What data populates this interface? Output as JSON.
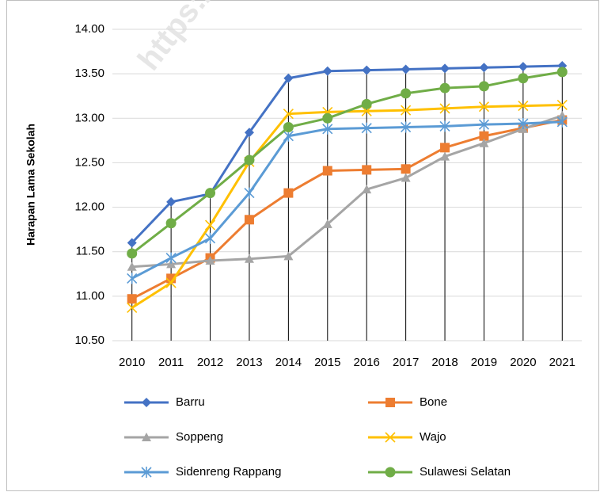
{
  "chart_data": {
    "type": "line",
    "watermark": "https://soppe",
    "ylabel": "Harapan Lama Sekolah",
    "categories": [
      "2010",
      "2011",
      "2012",
      "2013",
      "2014",
      "2015",
      "2016",
      "2017",
      "2018",
      "2019",
      "2020",
      "2021"
    ],
    "series": [
      {
        "name": "Barru",
        "color": "#4472c4",
        "marker": "diamond",
        "values": [
          11.6,
          12.06,
          12.15,
          12.84,
          13.45,
          13.53,
          13.54,
          13.55,
          13.56,
          13.57,
          13.58,
          13.59
        ]
      },
      {
        "name": "Bone",
        "color": "#ed7d31",
        "marker": "square",
        "values": [
          10.97,
          11.2,
          11.43,
          11.86,
          12.16,
          12.41,
          12.42,
          12.43,
          12.67,
          12.8,
          12.89,
          12.98
        ]
      },
      {
        "name": "Soppeng",
        "color": "#a5a5a5",
        "marker": "triangle",
        "values": [
          11.33,
          11.36,
          11.4,
          11.42,
          11.45,
          11.81,
          12.2,
          12.33,
          12.57,
          12.72,
          12.88,
          13.03
        ]
      },
      {
        "name": "Wajo",
        "color": "#ffc000",
        "marker": "x",
        "values": [
          10.87,
          11.15,
          11.8,
          12.51,
          13.05,
          13.07,
          13.08,
          13.09,
          13.11,
          13.13,
          13.14,
          13.15
        ]
      },
      {
        "name": "Sidenreng Rappang",
        "color": "#5b9bd5",
        "marker": "star",
        "values": [
          11.2,
          11.43,
          11.65,
          12.16,
          12.8,
          12.88,
          12.89,
          12.9,
          12.91,
          12.93,
          12.94,
          12.96
        ]
      },
      {
        "name": "Sulawesi Selatan",
        "color": "#70ad47",
        "marker": "circle",
        "values": [
          11.48,
          11.82,
          12.16,
          12.53,
          12.9,
          13.0,
          13.16,
          13.28,
          13.34,
          13.36,
          13.45,
          13.52
        ]
      }
    ],
    "ylim": [
      10.5,
      14
    ],
    "yticks": [
      {
        "value": 10.5,
        "label": "10.50"
      },
      {
        "value": 11,
        "label": "11.00"
      },
      {
        "value": 11.5,
        "label": "11.50"
      },
      {
        "value": 12,
        "label": "12.00"
      },
      {
        "value": 12.5,
        "label": "12.50"
      },
      {
        "value": 13,
        "label": "13.00"
      },
      {
        "value": 13.5,
        "label": "13.50"
      },
      {
        "value": 14,
        "label": "14.00"
      }
    ],
    "grid": true,
    "legend": "bottom"
  }
}
